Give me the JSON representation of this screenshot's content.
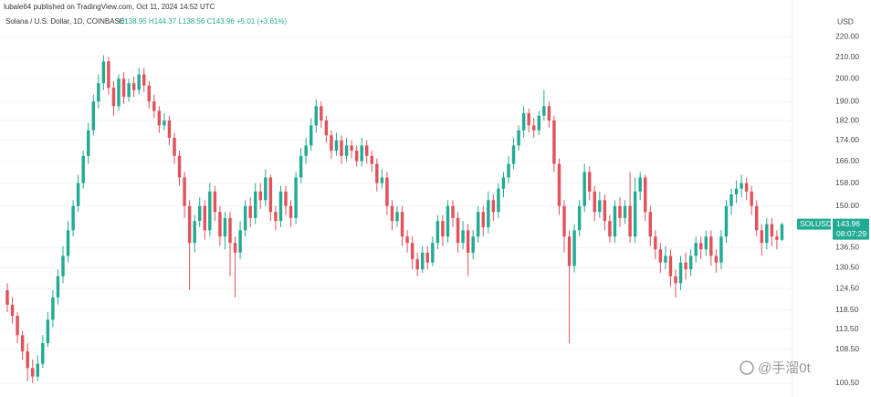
{
  "chart_data": {
    "type": "candlestick",
    "header": "lubale64 published on TradingView.com, Oct 11, 2024 14:52 UTC",
    "symbol": "Solana / U.S. Dollar, 1D, COINBASE",
    "ohlc_legend": "O138.95 H144.37 L138.56 C143.96 +5.01 (+3.61%)",
    "axis_unit": "USD",
    "price_tag": {
      "ticker": "SOLUSD",
      "price": 143.96,
      "countdown": "08:07:29"
    },
    "watermark": "@手溜0t",
    "log_scale": true,
    "grid": true,
    "up_color": "#22ab94",
    "down_color": "#e0525c",
    "ylim": [
      97.4,
      239
    ],
    "yticks": [
      {
        "value": 220,
        "label": "220.00"
      },
      {
        "value": 210,
        "label": "210.00"
      },
      {
        "value": 200,
        "label": "200.00"
      },
      {
        "value": 190,
        "label": "190.00"
      },
      {
        "value": 182,
        "label": "182.00"
      },
      {
        "value": 174,
        "label": "174.00"
      },
      {
        "value": 166,
        "label": "166.00"
      },
      {
        "value": 158,
        "label": "158.00"
      },
      {
        "value": 150,
        "label": "150.00"
      },
      {
        "value": 136.5,
        "label": "136.50"
      },
      {
        "value": 130.5,
        "label": "130.50"
      },
      {
        "value": 124.5,
        "label": "124.50"
      },
      {
        "value": 118.5,
        "label": "118.50"
      },
      {
        "value": 113.5,
        "label": "113.50"
      },
      {
        "value": 108.5,
        "label": "108.50"
      },
      {
        "value": 100.5,
        "label": "100.50"
      }
    ],
    "open": [
      124,
      120,
      117,
      112,
      108,
      104,
      102,
      105,
      110,
      116,
      122,
      128,
      134,
      142,
      150,
      158,
      168,
      178,
      190,
      198,
      208,
      196,
      188,
      200,
      192,
      198,
      195,
      202,
      197,
      190,
      186,
      180,
      182,
      175,
      168,
      160,
      150,
      138,
      145,
      150,
      142,
      155,
      148,
      140,
      146,
      138,
      135,
      142,
      150,
      146,
      155,
      152,
      160,
      148,
      145,
      155,
      150,
      146,
      160,
      168,
      172,
      180,
      188,
      182,
      176,
      170,
      174,
      168,
      172,
      170,
      166,
      172,
      168,
      165,
      158,
      160,
      150,
      145,
      148,
      140,
      138,
      133,
      130,
      135,
      132,
      138,
      145,
      140,
      150,
      146,
      138,
      142,
      135,
      140,
      148,
      143,
      152,
      148,
      156,
      160,
      165,
      172,
      178,
      185,
      180,
      178,
      184,
      188,
      182,
      165,
      150,
      140,
      131,
      142,
      150,
      162,
      155,
      148,
      152,
      145,
      140,
      150,
      146,
      150,
      140,
      155,
      160,
      148,
      140,
      136,
      132,
      134,
      128,
      126,
      132,
      130,
      134,
      138,
      136,
      140,
      134,
      132,
      140,
      150,
      154,
      156,
      158,
      155,
      150,
      142,
      138,
      144,
      140,
      138.95
    ],
    "high": [
      126,
      122,
      118,
      113,
      110,
      106,
      107,
      112,
      118,
      124,
      130,
      137,
      145,
      152,
      161,
      170,
      181,
      193,
      202,
      211,
      210,
      199,
      202,
      203,
      200,
      201,
      205,
      205,
      199,
      193,
      188,
      185,
      184,
      177,
      170,
      162,
      152,
      147,
      153,
      152,
      158,
      157,
      150,
      148,
      148,
      140,
      145,
      152,
      153,
      158,
      158,
      163,
      161,
      150,
      157,
      157,
      152,
      162,
      171,
      175,
      183,
      191,
      190,
      184,
      178,
      177,
      176,
      175,
      174,
      172,
      175,
      174,
      170,
      167,
      163,
      162,
      152,
      150,
      150,
      142,
      140,
      135,
      137,
      137,
      140,
      147,
      147,
      152,
      152,
      148,
      145,
      144,
      142,
      150,
      150,
      155,
      154,
      158,
      162,
      168,
      175,
      180,
      188,
      187,
      183,
      186,
      195,
      190,
      184,
      167,
      152,
      142,
      144,
      152,
      165,
      164,
      157,
      155,
      154,
      147,
      152,
      153,
      152,
      162,
      160,
      162,
      161,
      150,
      142,
      138,
      137,
      136,
      130,
      134,
      135,
      136,
      140,
      140,
      142,
      142,
      136,
      142,
      152,
      156,
      159,
      161,
      160,
      157,
      152,
      144,
      146,
      146,
      142,
      144.37
    ],
    "low": [
      118,
      115,
      110,
      106,
      101,
      100.5,
      101,
      104,
      109,
      114,
      120,
      126,
      132,
      140,
      148,
      156,
      165,
      176,
      187,
      195,
      193,
      184,
      186,
      189,
      190,
      192,
      193,
      194,
      187,
      183,
      177,
      178,
      172,
      165,
      157,
      146,
      124,
      135,
      143,
      139,
      140,
      145,
      137,
      136,
      128,
      122,
      133,
      140,
      143,
      144,
      149,
      150,
      145,
      142,
      143,
      147,
      143,
      144,
      158,
      165,
      170,
      177,
      179,
      173,
      167,
      168,
      165,
      166,
      167,
      164,
      164,
      165,
      162,
      155,
      156,
      147,
      142,
      143,
      137,
      135,
      130,
      128,
      129,
      130,
      131,
      136,
      137,
      138,
      143,
      135,
      136,
      128,
      133,
      138,
      140,
      141,
      145,
      146,
      153,
      158,
      163,
      170,
      175,
      177,
      175,
      176,
      182,
      179,
      162,
      147,
      135,
      110,
      129,
      140,
      148,
      152,
      145,
      146,
      142,
      138,
      138,
      143,
      144,
      138,
      138,
      152,
      145,
      137,
      133,
      129,
      130,
      125,
      122,
      124,
      127,
      128,
      132,
      133,
      134,
      131,
      129,
      130,
      138,
      147,
      151,
      153,
      152,
      147,
      140,
      134,
      136,
      137,
      136,
      138.56
    ],
    "close": [
      120,
      117,
      112,
      108,
      104,
      102,
      105,
      110,
      116,
      122,
      128,
      134,
      142,
      150,
      158,
      168,
      178,
      190,
      198,
      208,
      196,
      188,
      200,
      192,
      198,
      195,
      202,
      197,
      190,
      186,
      180,
      182,
      175,
      168,
      160,
      150,
      138,
      145,
      150,
      142,
      155,
      148,
      140,
      146,
      138,
      135,
      142,
      150,
      146,
      155,
      152,
      160,
      148,
      145,
      155,
      150,
      146,
      160,
      168,
      172,
      180,
      188,
      182,
      176,
      170,
      174,
      168,
      172,
      170,
      166,
      172,
      168,
      165,
      158,
      160,
      150,
      145,
      148,
      140,
      138,
      133,
      130,
      135,
      132,
      138,
      145,
      140,
      150,
      146,
      138,
      142,
      135,
      140,
      148,
      143,
      152,
      148,
      156,
      160,
      165,
      172,
      178,
      185,
      180,
      178,
      184,
      188,
      182,
      165,
      150,
      140,
      131,
      142,
      150,
      162,
      155,
      148,
      152,
      145,
      140,
      150,
      146,
      150,
      140,
      155,
      160,
      148,
      140,
      136,
      132,
      134,
      128,
      126,
      132,
      130,
      134,
      138,
      136,
      140,
      134,
      132,
      140,
      150,
      154,
      156,
      158,
      155,
      150,
      142,
      138,
      144,
      140,
      138.95,
      143.96
    ]
  }
}
